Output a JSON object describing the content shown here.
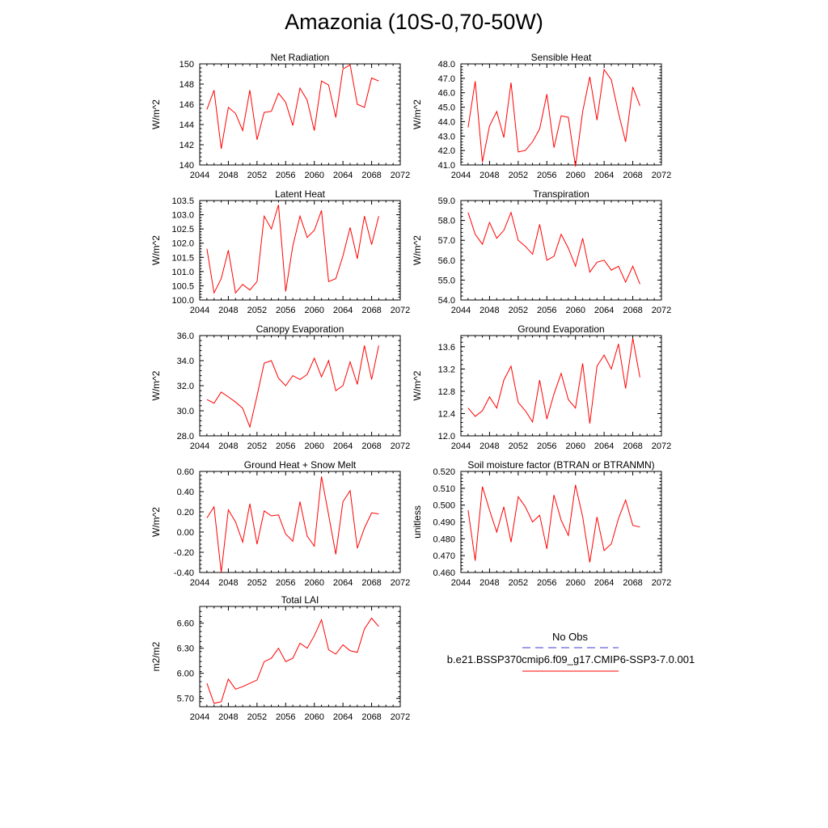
{
  "title": "Amazonia (10S-0,70-50W)",
  "legend": {
    "obs_label": "No Obs",
    "obs_color": "#3b3bd6",
    "case_label": "b.e21.BSSP370cmip6.f09_g17.CMIP6-SSP3-7.0.001",
    "case_color": "#ff0000"
  },
  "chart_data": [
    {
      "type": "line",
      "title": "Net Radiation",
      "ylabel": "W/m^2",
      "xlim": [
        2044,
        2072
      ],
      "xticks": [
        2044,
        2048,
        2052,
        2056,
        2060,
        2064,
        2068,
        2072
      ],
      "ylim": [
        140,
        150
      ],
      "yticks": [
        "140",
        "142",
        "144",
        "146",
        "148",
        "150"
      ],
      "series": [
        {
          "color": "#ff0000",
          "x": [
            2045,
            2046,
            2047,
            2048,
            2049,
            2050,
            2051,
            2052,
            2053,
            2054,
            2055,
            2056,
            2057,
            2058,
            2059,
            2060,
            2061,
            2062,
            2063,
            2064,
            2065,
            2066,
            2067,
            2068,
            2069
          ],
          "y": [
            145.5,
            147.4,
            141.6,
            145.7,
            145.1,
            143.4,
            147.4,
            142.5,
            145.2,
            145.3,
            147.1,
            146.2,
            143.9,
            147.6,
            146.4,
            143.4,
            148.3,
            147.9,
            144.7,
            149.5,
            149.9,
            146.0,
            145.7,
            148.6,
            148.3
          ]
        }
      ]
    },
    {
      "type": "line",
      "title": "Sensible Heat",
      "ylabel": "W/m^2",
      "xlim": [
        2044,
        2072
      ],
      "xticks": [
        2044,
        2048,
        2052,
        2056,
        2060,
        2064,
        2068,
        2072
      ],
      "ylim": [
        41.0,
        48.0
      ],
      "yticks": [
        "41.0",
        "42.0",
        "43.0",
        "44.0",
        "45.0",
        "46.0",
        "47.0",
        "48.0"
      ],
      "series": [
        {
          "color": "#ff0000",
          "x": [
            2045,
            2046,
            2047,
            2048,
            2049,
            2050,
            2051,
            2052,
            2053,
            2054,
            2055,
            2056,
            2057,
            2058,
            2059,
            2060,
            2061,
            2062,
            2063,
            2064,
            2065,
            2066,
            2067,
            2068,
            2069
          ],
          "y": [
            43.6,
            46.8,
            41.2,
            43.7,
            44.7,
            42.9,
            46.7,
            41.9,
            42.0,
            42.6,
            43.5,
            45.9,
            42.2,
            44.4,
            44.3,
            40.9,
            44.7,
            47.1,
            44.1,
            47.6,
            46.9,
            44.6,
            42.6,
            46.4,
            45.1
          ]
        }
      ]
    },
    {
      "type": "line",
      "title": "Latent Heat",
      "ylabel": "W/m^2",
      "xlim": [
        2044,
        2072
      ],
      "xticks": [
        2044,
        2048,
        2052,
        2056,
        2060,
        2064,
        2068,
        2072
      ],
      "ylim": [
        100.0,
        103.5
      ],
      "yticks": [
        "100.0",
        "100.5",
        "101.0",
        "101.5",
        "102.0",
        "102.5",
        "103.0",
        "103.5"
      ],
      "series": [
        {
          "color": "#ff0000",
          "x": [
            2045,
            2046,
            2047,
            2048,
            2049,
            2050,
            2051,
            2052,
            2053,
            2054,
            2055,
            2056,
            2057,
            2058,
            2059,
            2060,
            2061,
            2062,
            2063,
            2064,
            2065,
            2066,
            2067,
            2068,
            2069
          ],
          "y": [
            101.8,
            100.25,
            100.75,
            101.75,
            100.25,
            100.55,
            100.35,
            100.65,
            102.95,
            102.5,
            103.35,
            100.3,
            101.9,
            102.95,
            102.2,
            102.45,
            103.15,
            100.65,
            100.75,
            101.55,
            102.55,
            101.45,
            102.95,
            101.95,
            102.95
          ]
        }
      ]
    },
    {
      "type": "line",
      "title": "Transpiration",
      "ylabel": "W/m^2",
      "xlim": [
        2044,
        2072
      ],
      "xticks": [
        2044,
        2048,
        2052,
        2056,
        2060,
        2064,
        2068,
        2072
      ],
      "ylim": [
        54.0,
        59.0
      ],
      "yticks": [
        "54.0",
        "55.0",
        "56.0",
        "57.0",
        "58.0",
        "59.0"
      ],
      "series": [
        {
          "color": "#ff0000",
          "x": [
            2045,
            2046,
            2047,
            2048,
            2049,
            2050,
            2051,
            2052,
            2053,
            2054,
            2055,
            2056,
            2057,
            2058,
            2059,
            2060,
            2061,
            2062,
            2063,
            2064,
            2065,
            2066,
            2067,
            2068,
            2069
          ],
          "y": [
            58.4,
            57.3,
            56.8,
            57.9,
            57.1,
            57.5,
            58.4,
            57.0,
            56.7,
            56.3,
            57.8,
            56.0,
            56.2,
            57.3,
            56.6,
            55.7,
            57.1,
            55.4,
            55.9,
            56.0,
            55.5,
            55.7,
            54.9,
            55.7,
            54.8
          ]
        }
      ]
    },
    {
      "type": "line",
      "title": "Canopy Evaporation",
      "ylabel": "W/m^2",
      "xlim": [
        2044,
        2072
      ],
      "xticks": [
        2044,
        2048,
        2052,
        2056,
        2060,
        2064,
        2068,
        2072
      ],
      "ylim": [
        28.0,
        36.0
      ],
      "yticks": [
        "28.0",
        "30.0",
        "32.0",
        "34.0",
        "36.0"
      ],
      "series": [
        {
          "color": "#ff0000",
          "x": [
            2045,
            2046,
            2047,
            2048,
            2049,
            2050,
            2051,
            2052,
            2053,
            2054,
            2055,
            2056,
            2057,
            2058,
            2059,
            2060,
            2061,
            2062,
            2063,
            2064,
            2065,
            2066,
            2067,
            2068,
            2069
          ],
          "y": [
            30.9,
            30.6,
            31.5,
            31.1,
            30.7,
            30.2,
            28.7,
            31.2,
            33.8,
            34.0,
            32.6,
            32.0,
            32.8,
            32.5,
            32.9,
            34.2,
            32.7,
            34.0,
            31.6,
            32.0,
            33.9,
            32.1,
            35.2,
            32.5,
            35.2
          ]
        }
      ]
    },
    {
      "type": "line",
      "title": "Ground Evaporation",
      "ylabel": "W/m^2",
      "xlim": [
        2044,
        2072
      ],
      "xticks": [
        2044,
        2048,
        2052,
        2056,
        2060,
        2064,
        2068,
        2072
      ],
      "ylim": [
        12.0,
        13.8
      ],
      "yticks": [
        "12.0",
        "12.4",
        "12.8",
        "13.2",
        "13.6"
      ],
      "series": [
        {
          "color": "#ff0000",
          "x": [
            2045,
            2046,
            2047,
            2048,
            2049,
            2050,
            2051,
            2052,
            2053,
            2054,
            2055,
            2056,
            2057,
            2058,
            2059,
            2060,
            2061,
            2062,
            2063,
            2064,
            2065,
            2066,
            2067,
            2068,
            2069
          ],
          "y": [
            12.5,
            12.35,
            12.45,
            12.7,
            12.5,
            13.0,
            13.25,
            12.6,
            12.45,
            12.25,
            13.0,
            12.3,
            12.75,
            13.12,
            12.65,
            12.5,
            13.3,
            12.22,
            13.25,
            13.45,
            13.2,
            13.65,
            12.85,
            13.75,
            13.05
          ]
        }
      ]
    },
    {
      "type": "line",
      "title": "Ground Heat + Snow Melt",
      "ylabel": "W/m^2",
      "xlim": [
        2044,
        2072
      ],
      "xticks": [
        2044,
        2048,
        2052,
        2056,
        2060,
        2064,
        2068,
        2072
      ],
      "ylim": [
        -0.4,
        0.6
      ],
      "yticks": [
        "-0.40",
        "-0.20",
        "0.00",
        "0.20",
        "0.40",
        "0.60"
      ],
      "series": [
        {
          "color": "#ff0000",
          "x": [
            2045,
            2046,
            2047,
            2048,
            2049,
            2050,
            2051,
            2052,
            2053,
            2054,
            2055,
            2056,
            2057,
            2058,
            2059,
            2060,
            2061,
            2062,
            2063,
            2064,
            2065,
            2066,
            2067,
            2068,
            2069
          ],
          "y": [
            0.14,
            0.25,
            -0.4,
            0.22,
            0.1,
            -0.1,
            0.28,
            -0.12,
            0.21,
            0.16,
            0.17,
            -0.02,
            -0.09,
            0.3,
            -0.04,
            -0.14,
            0.55,
            0.17,
            -0.22,
            0.3,
            0.41,
            -0.16,
            0.04,
            0.19,
            0.18
          ]
        }
      ]
    },
    {
      "type": "line",
      "title": "Soil moisture factor (BTRAN or BTRANMN)",
      "ylabel": "unitless",
      "xlim": [
        2044,
        2072
      ],
      "xticks": [
        2044,
        2048,
        2052,
        2056,
        2060,
        2064,
        2068,
        2072
      ],
      "ylim": [
        0.46,
        0.52
      ],
      "yticks": [
        "0.460",
        "0.470",
        "0.480",
        "0.490",
        "0.500",
        "0.510",
        "0.520"
      ],
      "series": [
        {
          "color": "#ff0000",
          "x": [
            2045,
            2046,
            2047,
            2048,
            2049,
            2050,
            2051,
            2052,
            2053,
            2054,
            2055,
            2056,
            2057,
            2058,
            2059,
            2060,
            2061,
            2062,
            2063,
            2064,
            2065,
            2066,
            2067,
            2068,
            2069
          ],
          "y": [
            0.497,
            0.467,
            0.511,
            0.497,
            0.484,
            0.499,
            0.478,
            0.505,
            0.499,
            0.49,
            0.494,
            0.474,
            0.506,
            0.491,
            0.482,
            0.512,
            0.493,
            0.466,
            0.493,
            0.473,
            0.477,
            0.492,
            0.503,
            0.488,
            0.487
          ]
        }
      ]
    },
    {
      "type": "line",
      "title": "Total LAI",
      "ylabel": "m2/m2",
      "xlim": [
        2044,
        2072
      ],
      "xticks": [
        2044,
        2048,
        2052,
        2056,
        2060,
        2064,
        2068,
        2072
      ],
      "ylim": [
        5.6,
        6.8
      ],
      "yticks": [
        "5.70",
        "6.00",
        "6.30",
        "6.60"
      ],
      "series": [
        {
          "color": "#ff0000",
          "x": [
            2045,
            2046,
            2047,
            2048,
            2049,
            2050,
            2051,
            2052,
            2053,
            2054,
            2055,
            2056,
            2057,
            2058,
            2059,
            2060,
            2061,
            2062,
            2063,
            2064,
            2065,
            2066,
            2067,
            2068,
            2069
          ],
          "y": [
            5.88,
            5.64,
            5.66,
            5.93,
            5.81,
            5.84,
            5.88,
            5.92,
            6.14,
            6.18,
            6.3,
            6.14,
            6.18,
            6.36,
            6.3,
            6.45,
            6.64,
            6.28,
            6.23,
            6.34,
            6.27,
            6.25,
            6.53,
            6.66,
            6.56
          ]
        }
      ]
    }
  ]
}
